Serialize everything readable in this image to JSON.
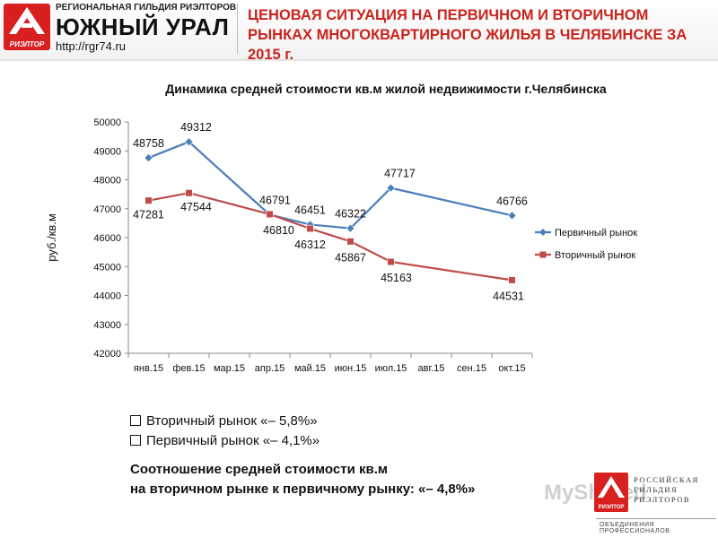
{
  "header": {
    "logo_text": "РИЭЛТОР",
    "guild_line": "РЕГИОНАЛЬНАЯ ГИЛЬДИЯ РИЭЛТОРОВ",
    "region_name": "ЮЖНЫЙ УРАЛ",
    "url": "http://rgr74.ru",
    "title": "ЦЕНОВАЯ СИТУАЦИЯ НА ПЕРВИЧНОМ И ВТОРИЧНОМ РЫНКАХ МНОГОКВАРТИРНОГО ЖИЛЬЯ  В  ЧЕЛЯБИНСКЕ ЗА 2015 г."
  },
  "chart_data": {
    "type": "line",
    "title": "Динамика средней стоимости кв.м жилой недвижимости г.Челябинска",
    "ylabel": "руб./кв.м",
    "xlabel": "",
    "categories": [
      "янв.15",
      "фев.15",
      "мар.15",
      "апр.15",
      "май.15",
      "июн.15",
      "июл.15",
      "авг.15",
      "сен.15",
      "окт.15"
    ],
    "ylim": [
      42000,
      50000
    ],
    "yticks": [
      42000,
      43000,
      44000,
      45000,
      46000,
      47000,
      48000,
      49000,
      50000
    ],
    "grid": false,
    "legend_position": "right",
    "series": [
      {
        "name": "Первичный рынок",
        "color": "#4a7ebb",
        "marker": "diamond",
        "points": [
          [
            0,
            48758
          ],
          [
            1,
            49312
          ],
          [
            3,
            46791
          ],
          [
            4,
            46451
          ],
          [
            5,
            46322
          ],
          [
            6,
            47717
          ],
          [
            9,
            46766
          ]
        ]
      },
      {
        "name": "Вторичный рынок",
        "color": "#be4b48",
        "marker": "square",
        "points": [
          [
            0,
            47281
          ],
          [
            1,
            47544
          ],
          [
            3,
            46810
          ],
          [
            4,
            46312
          ],
          [
            5,
            45867
          ],
          [
            6,
            45163
          ],
          [
            9,
            44531
          ]
        ]
      }
    ]
  },
  "notes": [
    "Вторичный рынок «– 5,8%»",
    "Первичный рынок «– 4,1%»"
  ],
  "summary": {
    "line1": "Соотношение средней стоимости кв.м",
    "line2": "на вторичном рынке к первичному рынку: «– 4,8%»"
  },
  "footer_logo": {
    "logo_text": "РИЭЛТОР",
    "name_line1": "РОССИЙСКАЯ",
    "name_line2": "ГИЛЬДИЯ",
    "name_line3": "РИЭЛТОРОВ",
    "sub": "ОБЪЕДИНЕНИЯ ПРОФЕССИОНАЛОВ"
  },
  "watermark": "MyShared"
}
